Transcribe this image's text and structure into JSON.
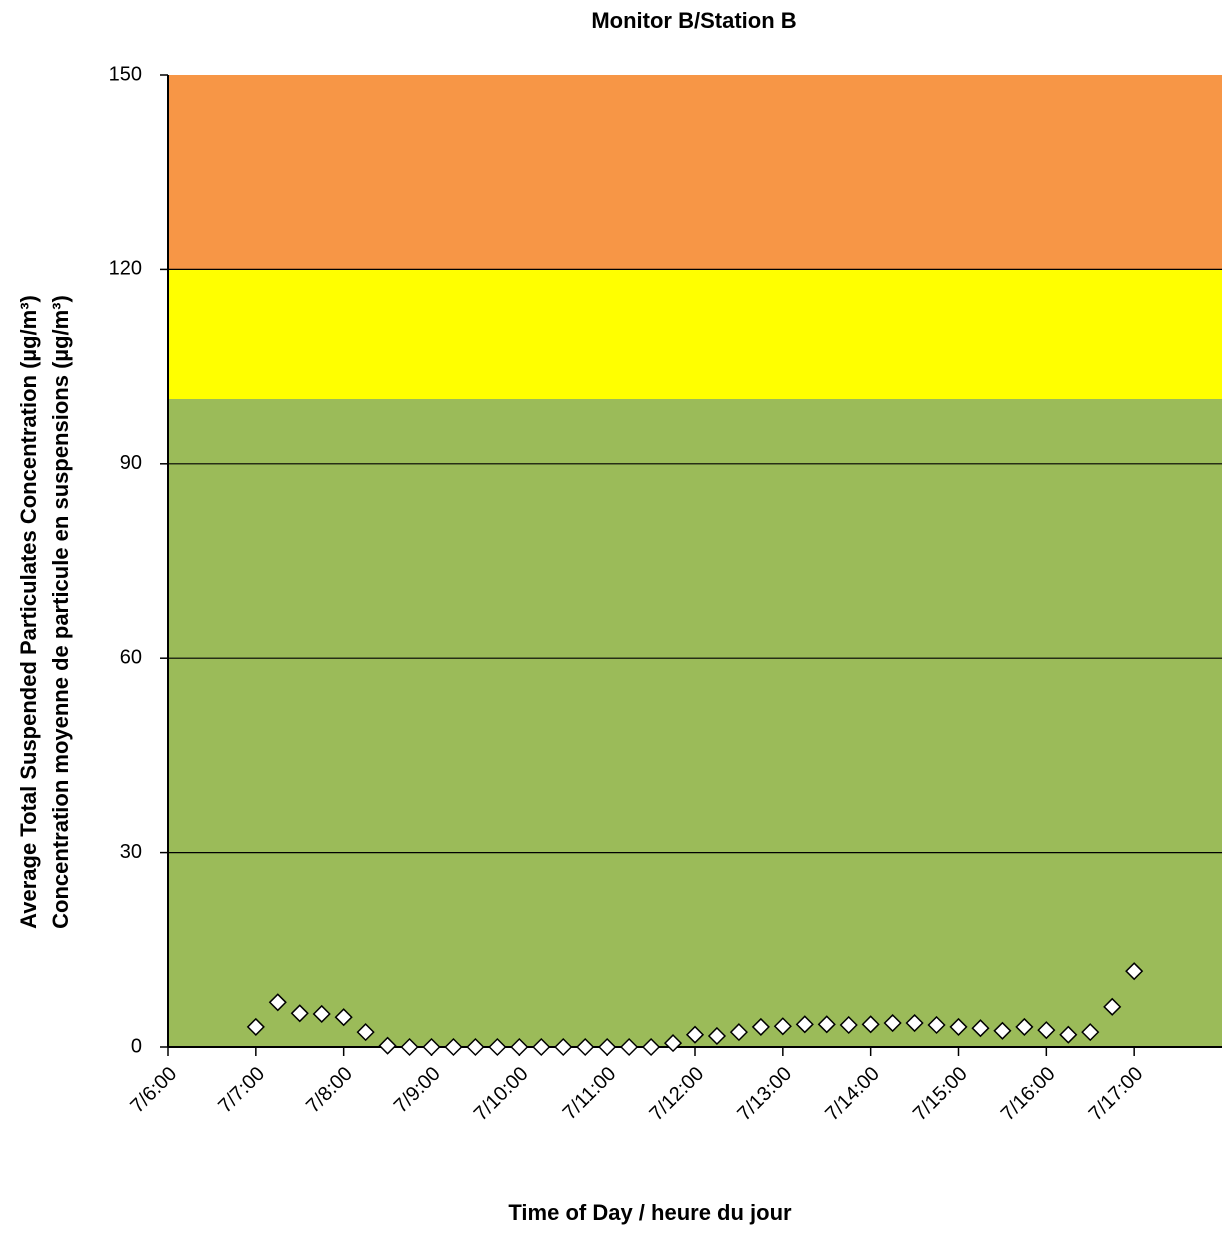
{
  "chart_data": {
    "type": "scatter",
    "title": "Monitor B/Station B",
    "x_label": "Time of Day / heure du jour",
    "y_label": [
      "Average Total Suspended Particulates Concentration (µg/m³)",
      "Concentration moyenne de particule en suspensions (µg/m³)"
    ],
    "xlim": [
      6,
      18
    ],
    "ylim": [
      0,
      150
    ],
    "xticks": [
      {
        "value": 6,
        "label": "7/6:00"
      },
      {
        "value": 7,
        "label": "7/7:00"
      },
      {
        "value": 8,
        "label": "7/8:00"
      },
      {
        "value": 9,
        "label": "7/9:00"
      },
      {
        "value": 10,
        "label": "7/10:00"
      },
      {
        "value": 11,
        "label": "7/11:00"
      },
      {
        "value": 12,
        "label": "7/12:00"
      },
      {
        "value": 13,
        "label": "7/13:00"
      },
      {
        "value": 14,
        "label": "7/14:00"
      },
      {
        "value": 15,
        "label": "7/15:00"
      },
      {
        "value": 16,
        "label": "7/16:00"
      },
      {
        "value": 17,
        "label": "7/17:00"
      }
    ],
    "yticks": [
      0,
      30,
      60,
      90,
      120,
      150
    ],
    "grid": true,
    "bands": [
      {
        "from": 0,
        "to": 100,
        "color": "#9bbb59"
      },
      {
        "from": 100,
        "to": 120,
        "color": "#ffff00"
      },
      {
        "from": 120,
        "to": 150,
        "color": "#f79646"
      }
    ],
    "marker_color": "#ffffff",
    "x": [
      7,
      7.25,
      7.5,
      7.75,
      8,
      8.25,
      8.5,
      8.75,
      9,
      9.25,
      9.5,
      9.75,
      10,
      10.25,
      10.5,
      10.75,
      11,
      11.25,
      11.5,
      11.75,
      12,
      12.25,
      12.5,
      12.75,
      13,
      13.25,
      13.5,
      13.75,
      14,
      14.25,
      14.5,
      14.75,
      15,
      15.25,
      15.5,
      15.75,
      16,
      16.25,
      16.5,
      16.75,
      17
    ],
    "values": [
      3.1,
      6.9,
      5.2,
      5.1,
      4.6,
      2.3,
      0.2,
      0,
      0,
      0,
      0,
      0,
      0,
      0,
      0,
      0,
      0,
      0,
      0,
      0.6,
      1.9,
      1.7,
      2.3,
      3.1,
      3.2,
      3.5,
      3.5,
      3.4,
      3.5,
      3.7,
      3.7,
      3.4,
      3.1,
      2.9,
      2.5,
      3.1,
      2.6,
      1.9,
      2.3,
      6.2,
      11.7
    ]
  }
}
